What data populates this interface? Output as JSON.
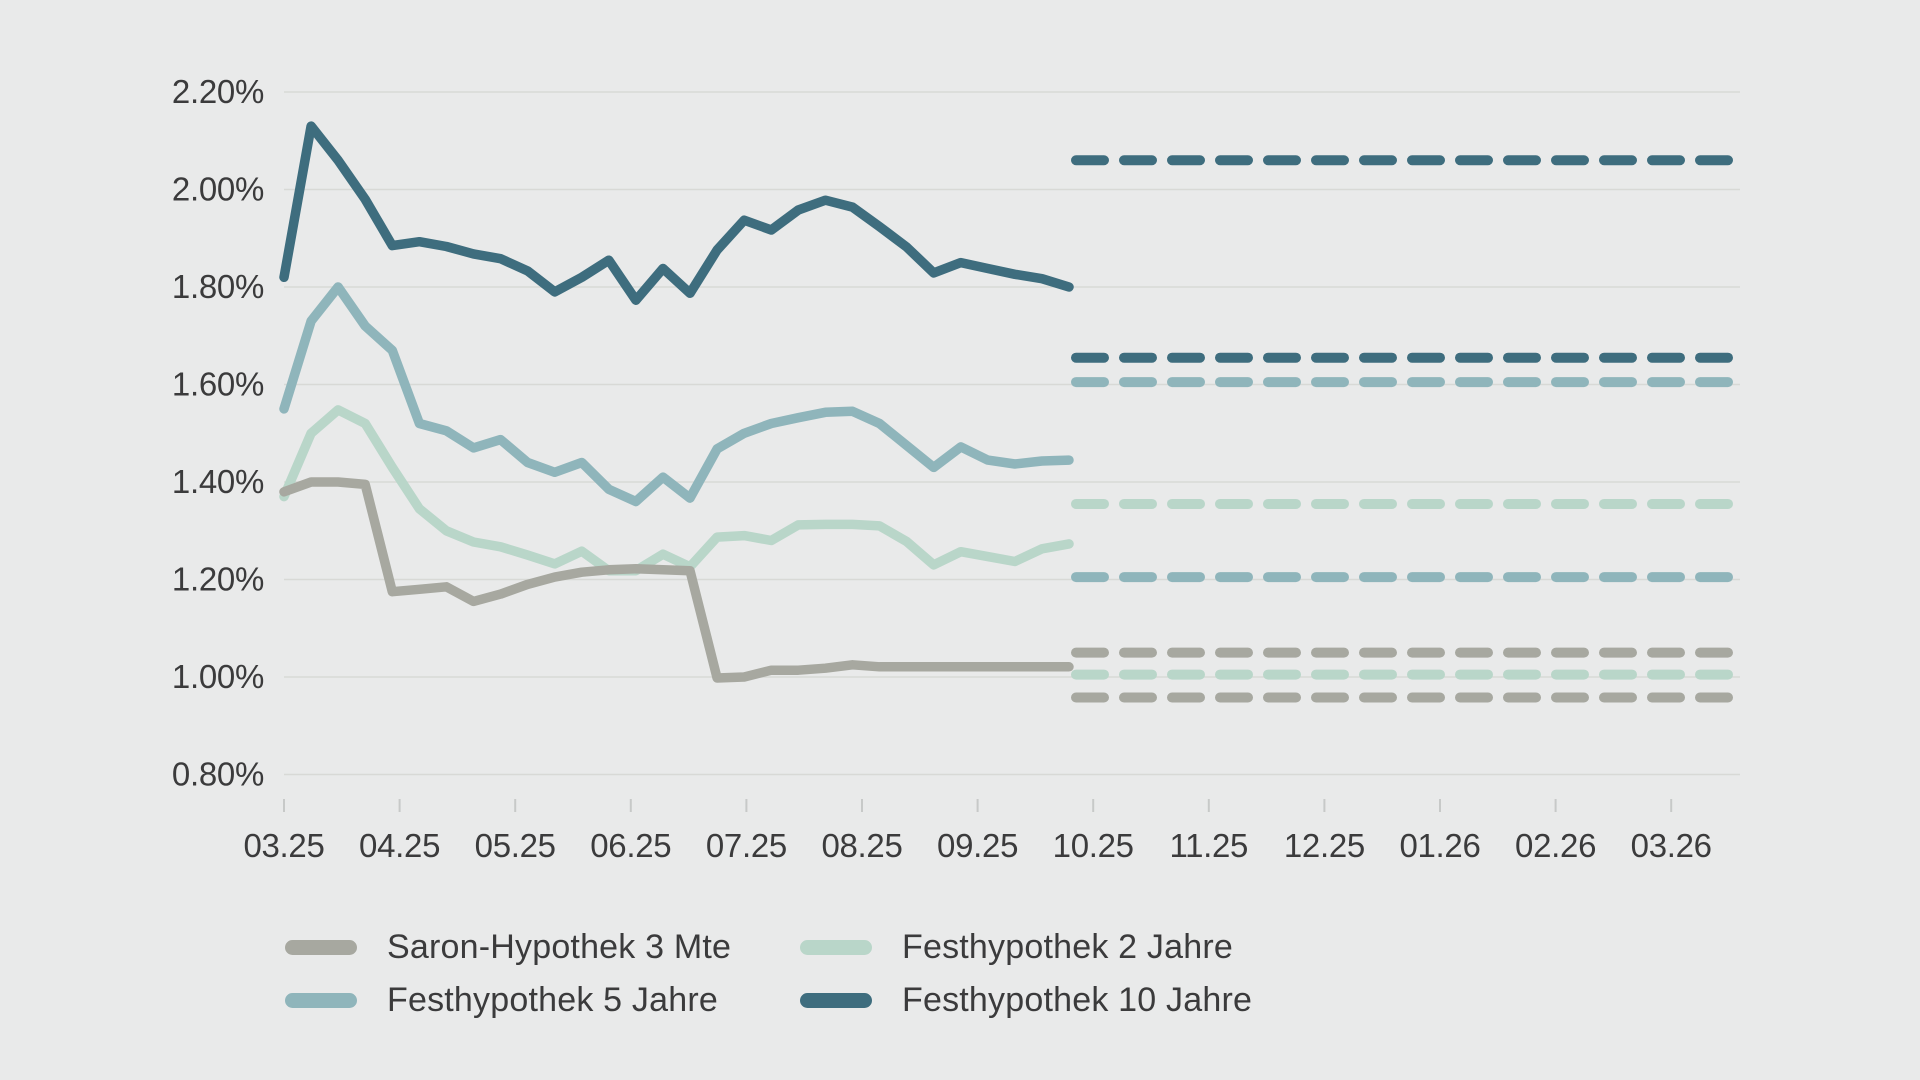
{
  "background_color": "#e9eaea",
  "grid_color": "#d8d9d6",
  "tick_color": "#c7c9c8",
  "text_color": "#3b3b3c",
  "chart_data": {
    "type": "line",
    "title": "",
    "xlabel": "",
    "ylabel": "",
    "ylim": [
      0.8,
      2.2
    ],
    "grid": "horizontal",
    "legend_position": "bottom",
    "y_tick_labels": [
      "2.20%",
      "2.00%",
      "1.80%",
      "1.60%",
      "1.40%",
      "1.20%",
      "1.00%",
      "0.80%"
    ],
    "y_tick_values": [
      2.2,
      2.0,
      1.8,
      1.6,
      1.4,
      1.2,
      1.0,
      0.8
    ],
    "x_tick_labels": [
      "03.25",
      "04.25",
      "05.25",
      "06.25",
      "07.25",
      "08.25",
      "09.25",
      "10.25",
      "11.25",
      "12.25",
      "01.26",
      "02.26",
      "03.26"
    ],
    "history_points_per_series": 30,
    "history_x_range_months": [
      "03.25",
      "10.25"
    ],
    "forecast_x_range_months": [
      "10.25",
      "03.26"
    ],
    "series": [
      {
        "name": "Saron-Hypothek 3 Mte",
        "color": "#a7a8a0",
        "values": [
          1.38,
          1.4,
          1.4,
          1.395,
          1.175,
          1.18,
          1.185,
          1.155,
          1.17,
          1.19,
          1.205,
          1.215,
          1.22,
          1.222,
          1.22,
          1.218,
          0.998,
          1.0,
          1.014,
          1.014,
          1.018,
          1.025,
          1.021,
          1.021,
          1.021,
          1.021,
          1.021,
          1.021,
          1.021,
          1.021
        ],
        "forecast_upper": 1.05,
        "forecast_lower": 0.958
      },
      {
        "name": "Festhypothek 2 Jahre",
        "color": "#b9d6c9",
        "values": [
          1.37,
          1.5,
          1.548,
          1.52,
          1.43,
          1.345,
          1.3,
          1.277,
          1.267,
          1.25,
          1.232,
          1.258,
          1.218,
          1.218,
          1.252,
          1.226,
          1.287,
          1.29,
          1.28,
          1.312,
          1.313,
          1.313,
          1.31,
          1.278,
          1.23,
          1.257,
          1.247,
          1.237,
          1.263,
          1.273
        ],
        "forecast_upper": 1.355,
        "forecast_lower": 1.005
      },
      {
        "name": "Festhypothek 5 Jahre",
        "color": "#8fb5bb",
        "values": [
          1.55,
          1.73,
          1.8,
          1.72,
          1.67,
          1.52,
          1.505,
          1.47,
          1.487,
          1.44,
          1.42,
          1.44,
          1.385,
          1.36,
          1.41,
          1.367,
          1.468,
          1.5,
          1.52,
          1.532,
          1.543,
          1.545,
          1.52,
          1.475,
          1.43,
          1.472,
          1.445,
          1.437,
          1.443,
          1.445
        ],
        "forecast_upper": 1.605,
        "forecast_lower": 1.205
      },
      {
        "name": "Festhypothek 10 Jahre",
        "color": "#3e6d7e",
        "values": [
          1.82,
          2.13,
          2.06,
          1.98,
          1.885,
          1.893,
          1.883,
          1.868,
          1.858,
          1.833,
          1.79,
          1.82,
          1.855,
          1.773,
          1.838,
          1.787,
          1.876,
          1.937,
          1.917,
          1.958,
          1.978,
          1.964,
          1.924,
          1.882,
          1.829,
          1.85,
          1.838,
          1.826,
          1.817,
          1.8
        ],
        "forecast_upper": 2.06,
        "forecast_lower": 1.655
      }
    ]
  }
}
